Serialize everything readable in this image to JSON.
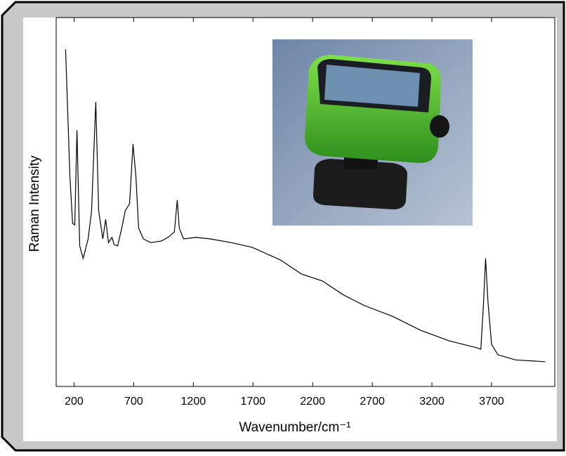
{
  "chart_data": {
    "type": "line",
    "xlabel": "Wavenumber/cm⁻¹",
    "ylabel": "Raman Intensity",
    "x": [
      129,
      165,
      188,
      206,
      224,
      247,
      276,
      318,
      347,
      382,
      406,
      441,
      465,
      488,
      518,
      535,
      565,
      600,
      629,
      665,
      694,
      718,
      741,
      782,
      841,
      929,
      988,
      1041,
      1065,
      1082,
      1118,
      1224,
      1341,
      1518,
      1694,
      1929,
      2106,
      2282,
      2459,
      2635,
      2871,
      3106,
      3341,
      3576,
      3610,
      3630,
      3650,
      3670,
      3700,
      3753,
      3900,
      4150
    ],
    "series": [
      {
        "name": "Raman Intensity",
        "color": "#000000",
        "values": [
          91.4,
          57.1,
          44.2,
          43.8,
          69.5,
          38.1,
          34.7,
          40,
          47.6,
          77.1,
          47.6,
          40,
          45.3,
          39,
          40.4,
          38.5,
          38.1,
          42.9,
          47.6,
          49.5,
          65.7,
          57.1,
          42.9,
          40,
          39,
          39.4,
          40.4,
          41.9,
          50.5,
          42.9,
          40,
          40.4,
          40,
          39,
          37.7,
          34.3,
          30.5,
          28.6,
          24.8,
          21.9,
          19,
          15.2,
          12.4,
          10.5,
          10.1,
          21,
          34.7,
          22.9,
          11.4,
          8.6,
          7.2,
          6.7
        ]
      }
    ],
    "xlim": [
      50,
      4230
    ],
    "ylim": [
      0,
      100
    ],
    "xticks": [
      200,
      700,
      1200,
      1700,
      2200,
      2700,
      3200,
      3700
    ]
  }
}
